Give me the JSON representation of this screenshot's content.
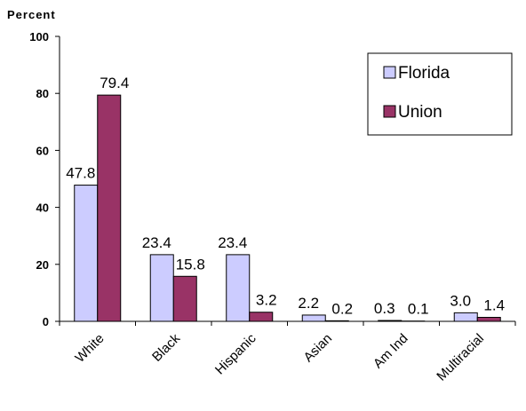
{
  "chart_data": {
    "type": "bar",
    "title": "",
    "xlabel": "",
    "ylabel": "Percent",
    "ylim": [
      0,
      100
    ],
    "yticks": [
      0,
      20,
      40,
      60,
      80,
      100
    ],
    "grid": false,
    "legend_position": "top-right",
    "categories": [
      "White",
      "Black",
      "Hispanic",
      "Asian",
      "Am Ind",
      "Multiracial"
    ],
    "series": [
      {
        "name": "Florida",
        "color": "#ccccff",
        "values": [
          47.8,
          23.4,
          23.4,
          2.2,
          0.3,
          3.0
        ],
        "labels": [
          "47.8",
          "23.4",
          "23.4",
          "2.2",
          "0.3",
          "3.0"
        ]
      },
      {
        "name": "Union",
        "color": "#993366",
        "values": [
          79.4,
          15.8,
          3.2,
          0.2,
          0.1,
          1.4
        ],
        "labels": [
          "79.4",
          "15.8",
          "3.2",
          "0.2",
          "0.1",
          "1.4"
        ]
      }
    ]
  }
}
